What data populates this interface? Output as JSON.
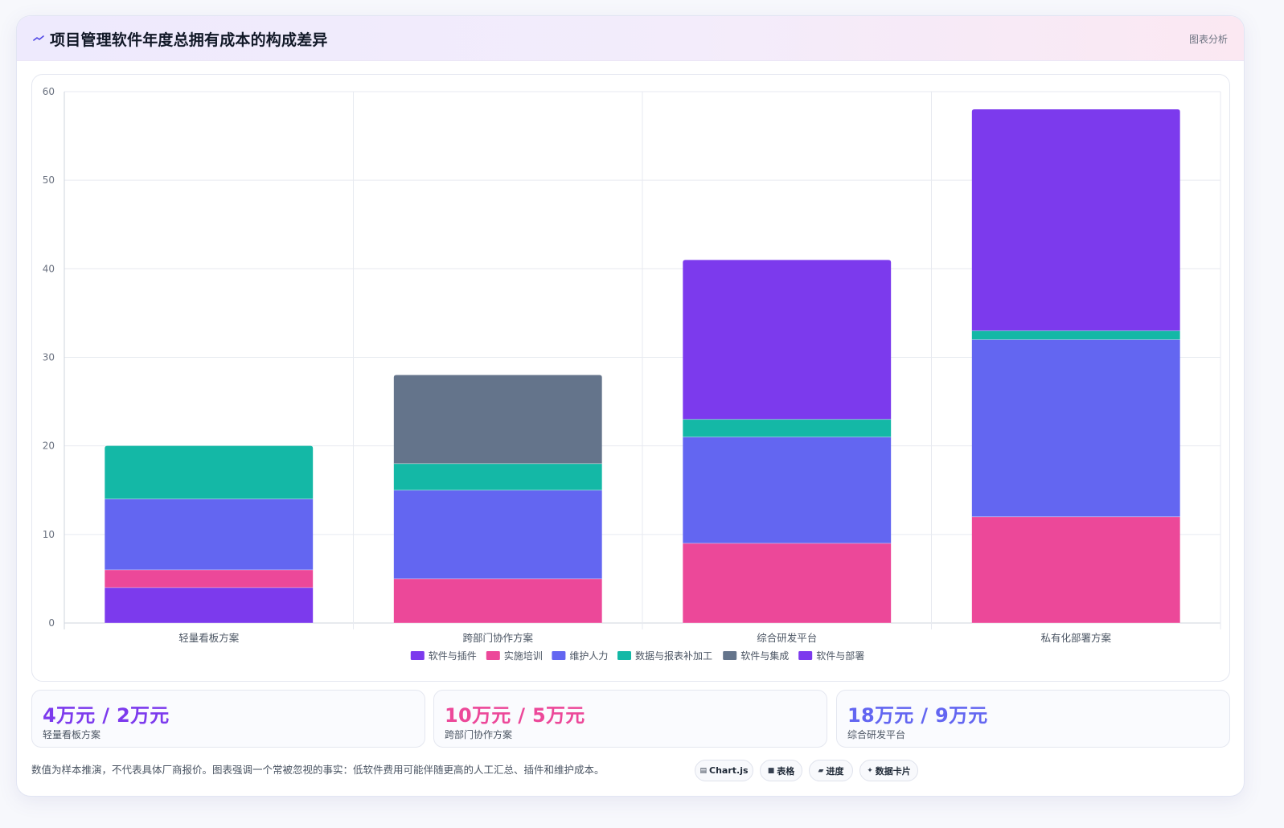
{
  "header": {
    "icon": "trend-line-icon",
    "title": "项目管理软件年度总拥有成本的构成差异",
    "tag": "图表分析"
  },
  "chart_data": {
    "type": "bar",
    "stacked": true,
    "categories": [
      "轻量看板方案",
      "跨部门协作方案",
      "综合研发平台",
      "私有化部署方案"
    ],
    "series": [
      {
        "name": "软件与插件",
        "color": "#7c3aed",
        "values": [
          4,
          0,
          0,
          0
        ]
      },
      {
        "name": "实施培训",
        "color": "#ec4899",
        "values": [
          2,
          5,
          9,
          12
        ]
      },
      {
        "name": "维护人力",
        "color": "#6366f1",
        "values": [
          8,
          10,
          12,
          20
        ]
      },
      {
        "name": "数据与报表补加工",
        "color": "#14b8a6",
        "values": [
          6,
          3,
          2,
          1
        ]
      },
      {
        "name": "软件与集成",
        "color": "#64748b",
        "values": [
          0,
          10,
          0,
          0
        ]
      },
      {
        "name": "软件与部署",
        "color": "#7c3aed",
        "values": [
          0,
          0,
          18,
          25
        ]
      }
    ],
    "ylim": [
      0,
      60
    ],
    "yticks": [
      0,
      10,
      20,
      30,
      40,
      50,
      60
    ],
    "grid": true,
    "legend": "bottom-center"
  },
  "stats": [
    {
      "value": "4万元 / 2万元",
      "label": "轻量看板方案",
      "color": "#7c3aed"
    },
    {
      "value": "10万元 / 5万元",
      "label": "跨部门协作方案",
      "color": "#ec4899"
    },
    {
      "value": "18万元 / 9万元",
      "label": "综合研发平台",
      "color": "#6366f1"
    }
  ],
  "footnote": "数值为样本推演，不代表具体厂商报价。图表强调一个常被忽视的事实：低软件费用可能伴随更高的人工汇总、插件和维护成本。",
  "chips": [
    {
      "icon": "chart-icon",
      "glyph": "▤",
      "label": "Chart.js"
    },
    {
      "icon": "table-icon",
      "glyph": "■",
      "label": "表格"
    },
    {
      "icon": "progress-icon",
      "glyph": "▰",
      "label": "进度"
    },
    {
      "icon": "data-card-icon",
      "glyph": "✦",
      "label": "数据卡片"
    }
  ]
}
